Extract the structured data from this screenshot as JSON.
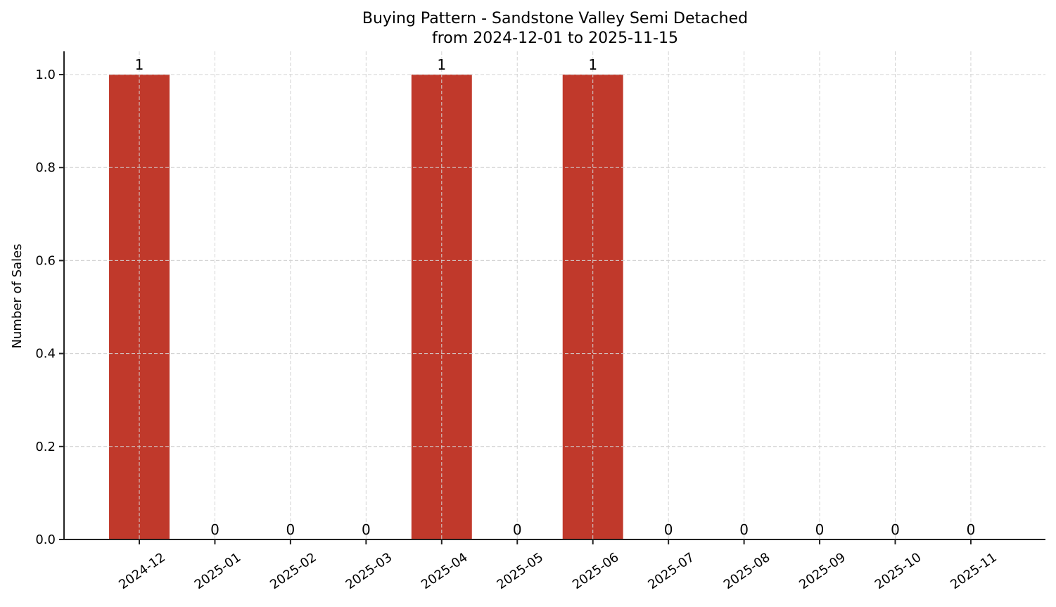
{
  "chart_data": {
    "type": "bar",
    "title": "Buying Pattern - Sandstone Valley Semi Detached",
    "subtitle": "from 2024-12-01 to 2025-11-15",
    "xlabel": "",
    "ylabel": "Number of Sales",
    "categories": [
      "2024-12",
      "2025-01",
      "2025-02",
      "2025-03",
      "2025-04",
      "2025-05",
      "2025-06",
      "2025-07",
      "2025-08",
      "2025-09",
      "2025-10",
      "2025-11"
    ],
    "values": [
      1,
      0,
      0,
      0,
      1,
      0,
      1,
      0,
      0,
      0,
      0,
      0
    ],
    "value_labels": [
      "1",
      "0",
      "0",
      "0",
      "1",
      "0",
      "1",
      "0",
      "0",
      "0",
      "0",
      "0"
    ],
    "ylim": [
      0,
      1.05
    ],
    "yticks": [
      0.0,
      0.2,
      0.4,
      0.6,
      0.8,
      1.0
    ],
    "ytick_labels": [
      "0.0",
      "0.2",
      "0.4",
      "0.6",
      "0.8",
      "1.0"
    ],
    "grid": true,
    "legend": null,
    "bar_color": "#C0392B",
    "xtick_rotation": -35
  }
}
